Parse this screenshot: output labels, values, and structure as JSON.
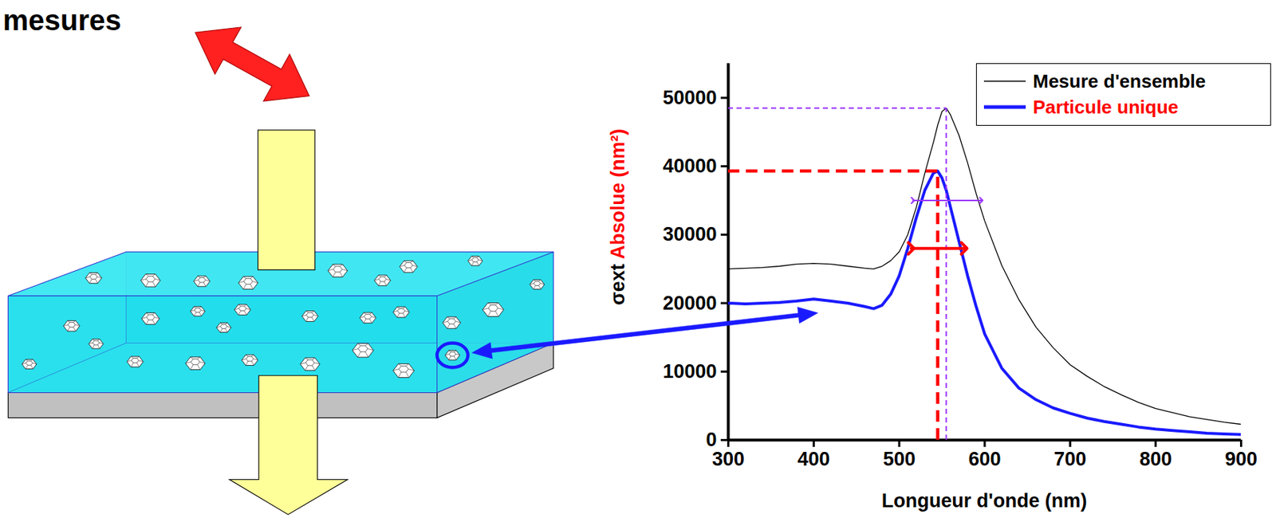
{
  "chart_data": {
    "type": "line",
    "title": "mesures",
    "x_label": "Longueur d'onde (nm)",
    "y_label": "σext Absolue (nm²)",
    "xlim": [
      300,
      900
    ],
    "xticks": [
      300,
      400,
      500,
      600,
      700,
      800,
      900
    ],
    "ylim": [
      0,
      55000
    ],
    "yticks": [
      0,
      10000,
      20000,
      30000,
      40000,
      50000
    ],
    "legend": "top-right",
    "x": [
      300,
      320,
      340,
      360,
      380,
      400,
      420,
      440,
      460,
      470,
      480,
      490,
      500,
      510,
      520,
      530,
      540,
      545,
      550,
      555,
      560,
      570,
      580,
      590,
      600,
      620,
      640,
      660,
      680,
      700,
      720,
      740,
      760,
      780,
      800,
      820,
      840,
      860,
      880,
      900
    ],
    "series": [
      {
        "name": "Mesure d'ensemble",
        "color": "#000000",
        "values": [
          25000,
          25100,
          25200,
          25400,
          25700,
          25800,
          25700,
          25400,
          25100,
          25000,
          25400,
          26200,
          27500,
          30000,
          34000,
          39000,
          43500,
          46000,
          48000,
          48500,
          47500,
          44500,
          40500,
          36000,
          32000,
          25500,
          20500,
          16500,
          13500,
          11000,
          9300,
          7800,
          6600,
          5500,
          4600,
          4000,
          3400,
          3000,
          2600,
          2300
        ]
      },
      {
        "name": "Particule unique",
        "color": "#1a1aff",
        "values": [
          20000,
          19900,
          20000,
          20100,
          20300,
          20600,
          20300,
          20000,
          19500,
          19200,
          19700,
          21300,
          24000,
          28000,
          32500,
          36500,
          39000,
          39300,
          38300,
          36500,
          34000,
          29000,
          24000,
          19500,
          15500,
          10500,
          7600,
          5900,
          4700,
          3900,
          3200,
          2700,
          2300,
          1900,
          1600,
          1400,
          1200,
          1000,
          900,
          800
        ]
      }
    ],
    "peaks": [
      {
        "series": "Mesure d'ensemble",
        "x": 555,
        "y": 48500,
        "color": "#9933ff"
      },
      {
        "series": "Particule unique",
        "x": 545,
        "y": 39300,
        "color": "#ff0000"
      }
    ],
    "widths": [
      {
        "series": "Mesure d'ensemble",
        "x1": 516,
        "x2": 596,
        "y": 35000,
        "color": "#9933ff"
      },
      {
        "series": "Particule unique",
        "x1": 514,
        "x2": 576,
        "y": 28000,
        "color": "#ff0000"
      }
    ]
  }
}
